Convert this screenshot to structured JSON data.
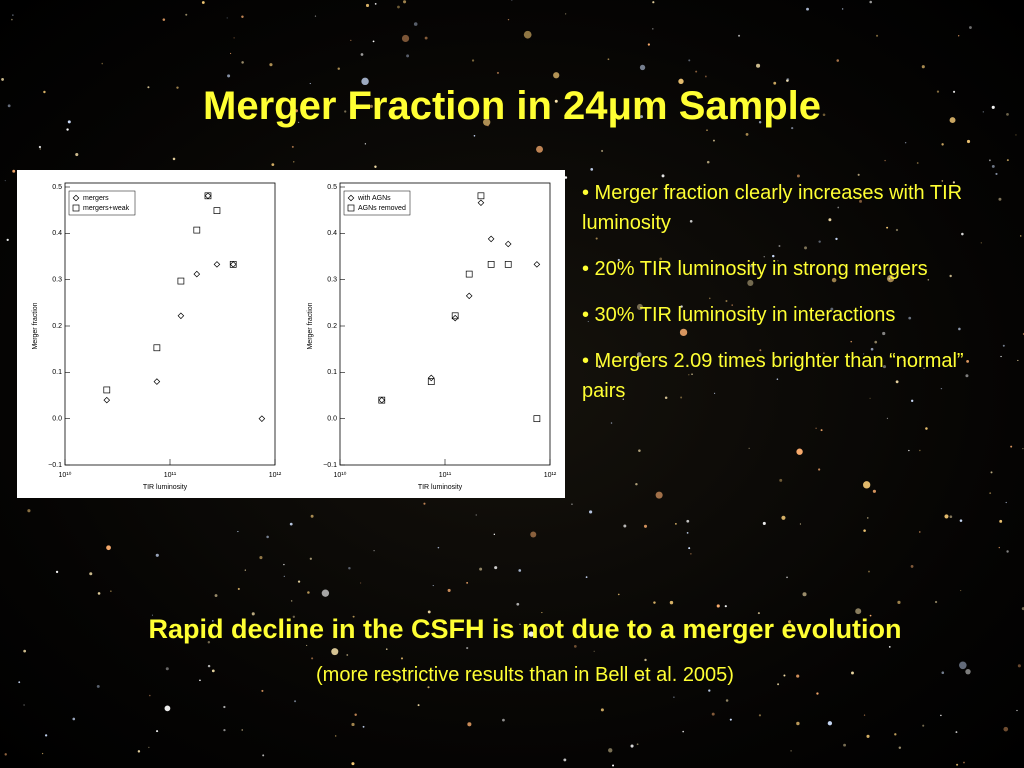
{
  "title": "Merger Fraction in 24μm Sample",
  "bullets": [
    "• Merger fraction clearly increases with TIR luminosity",
    "• 20% TIR luminosity in strong mergers",
    "• 30% TIR luminosity in interactions",
    "• Mergers 2.09 times brighter than “normal” pairs"
  ],
  "conclusion": "Rapid decline in the CSFH is not due to a merger evolution",
  "note": "(more restrictive results than in Bell et al. 2005)",
  "chart_data": [
    {
      "type": "scatter",
      "x_label": "TIR luminosity",
      "y_label": "Merger fraction",
      "x_log": true,
      "xlim": [
        10000000000,
        1000000000000
      ],
      "xticks": [
        {
          "value": 10000000000,
          "label": "10¹⁰"
        },
        {
          "value": 100000000000,
          "label": "10¹¹"
        },
        {
          "value": 1000000000000,
          "label": "10¹²"
        }
      ],
      "ylim": [
        -0.1,
        0.5
      ],
      "yticks": [
        {
          "value": -0.1,
          "label": "−0.1"
        },
        {
          "value": 0,
          "label": "0.0"
        },
        0.1,
        0.2,
        0.3,
        0.4,
        0.5
      ],
      "legend": "upper left",
      "series": [
        {
          "name": "mergers",
          "marker": "diamond",
          "color": "#000000",
          "x": [
            25000000000,
            75000000000,
            127000000000,
            180000000000,
            230000000000,
            280000000000,
            400000000000,
            750000000000
          ],
          "values": [
            0.04,
            0.08,
            0.222,
            0.312,
            0.481,
            0.333,
            0.333,
            0
          ]
        },
        {
          "name": "mergers+weak",
          "marker": "square",
          "color": "#000000",
          "x": [
            25000000000,
            75000000000,
            127000000000,
            180000000000,
            230000000000,
            280000000000,
            400000000000
          ],
          "values": [
            0.062,
            0.153,
            0.297,
            0.407,
            0.481,
            0.449,
            0.333
          ]
        }
      ]
    },
    {
      "type": "scatter",
      "x_label": "TIR luminosity",
      "y_label": "Merger fraction",
      "x_log": true,
      "xlim": [
        10000000000,
        1000000000000
      ],
      "xticks": [
        {
          "value": 10000000000,
          "label": "10¹⁰"
        },
        {
          "value": 100000000000,
          "label": "10¹¹"
        },
        {
          "value": 1000000000000,
          "label": "10¹²"
        }
      ],
      "ylim": [
        -0.1,
        0.5
      ],
      "yticks": [
        {
          "value": -0.1,
          "label": "−0.1"
        },
        {
          "value": 0,
          "label": "0.0"
        },
        0.1,
        0.2,
        0.3,
        0.4,
        0.5
      ],
      "legend": "upper left",
      "series": [
        {
          "name": "with AGNs",
          "marker": "diamond",
          "color": "#000000",
          "x": [
            25000000000,
            74000000000,
            125000000000,
            170000000000,
            220000000000,
            275000000000,
            400000000000,
            750000000000
          ],
          "values": [
            0.04,
            0.088,
            0.217,
            0.265,
            0.466,
            0.388,
            0.377,
            0.333
          ]
        },
        {
          "name": "AGNs removed",
          "marker": "square",
          "color": "#000000",
          "x": [
            25000000000,
            74000000000,
            125000000000,
            170000000000,
            220000000000,
            275000000000,
            400000000000,
            750000000000
          ],
          "values": [
            0.04,
            0.08,
            0.222,
            0.312,
            0.481,
            0.333,
            0.333,
            0
          ]
        }
      ]
    }
  ]
}
